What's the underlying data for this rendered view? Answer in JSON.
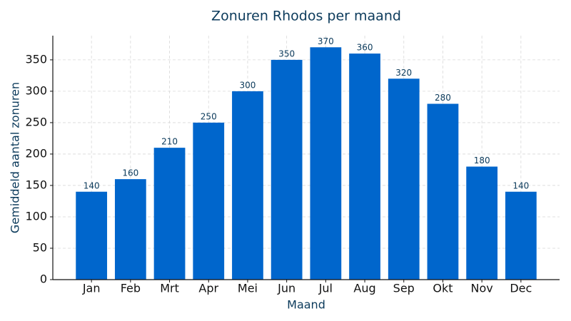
{
  "chart_data": {
    "type": "bar",
    "title": "Zonuren Rhodos per maand",
    "x_label": "Maand",
    "y_label": "Gemiddeld aantal zonuren",
    "categories": [
      "Jan",
      "Feb",
      "Mrt",
      "Apr",
      "Mei",
      "Jun",
      "Jul",
      "Aug",
      "Sep",
      "Okt",
      "Nov",
      "Dec"
    ],
    "values": [
      140,
      160,
      210,
      250,
      300,
      350,
      370,
      360,
      320,
      280,
      180,
      140
    ],
    "color": "#0066cc",
    "ylim": [
      0,
      388.5
    ],
    "yticks": [
      0,
      50,
      100,
      150,
      200,
      250,
      300,
      350
    ],
    "grid": true
  }
}
